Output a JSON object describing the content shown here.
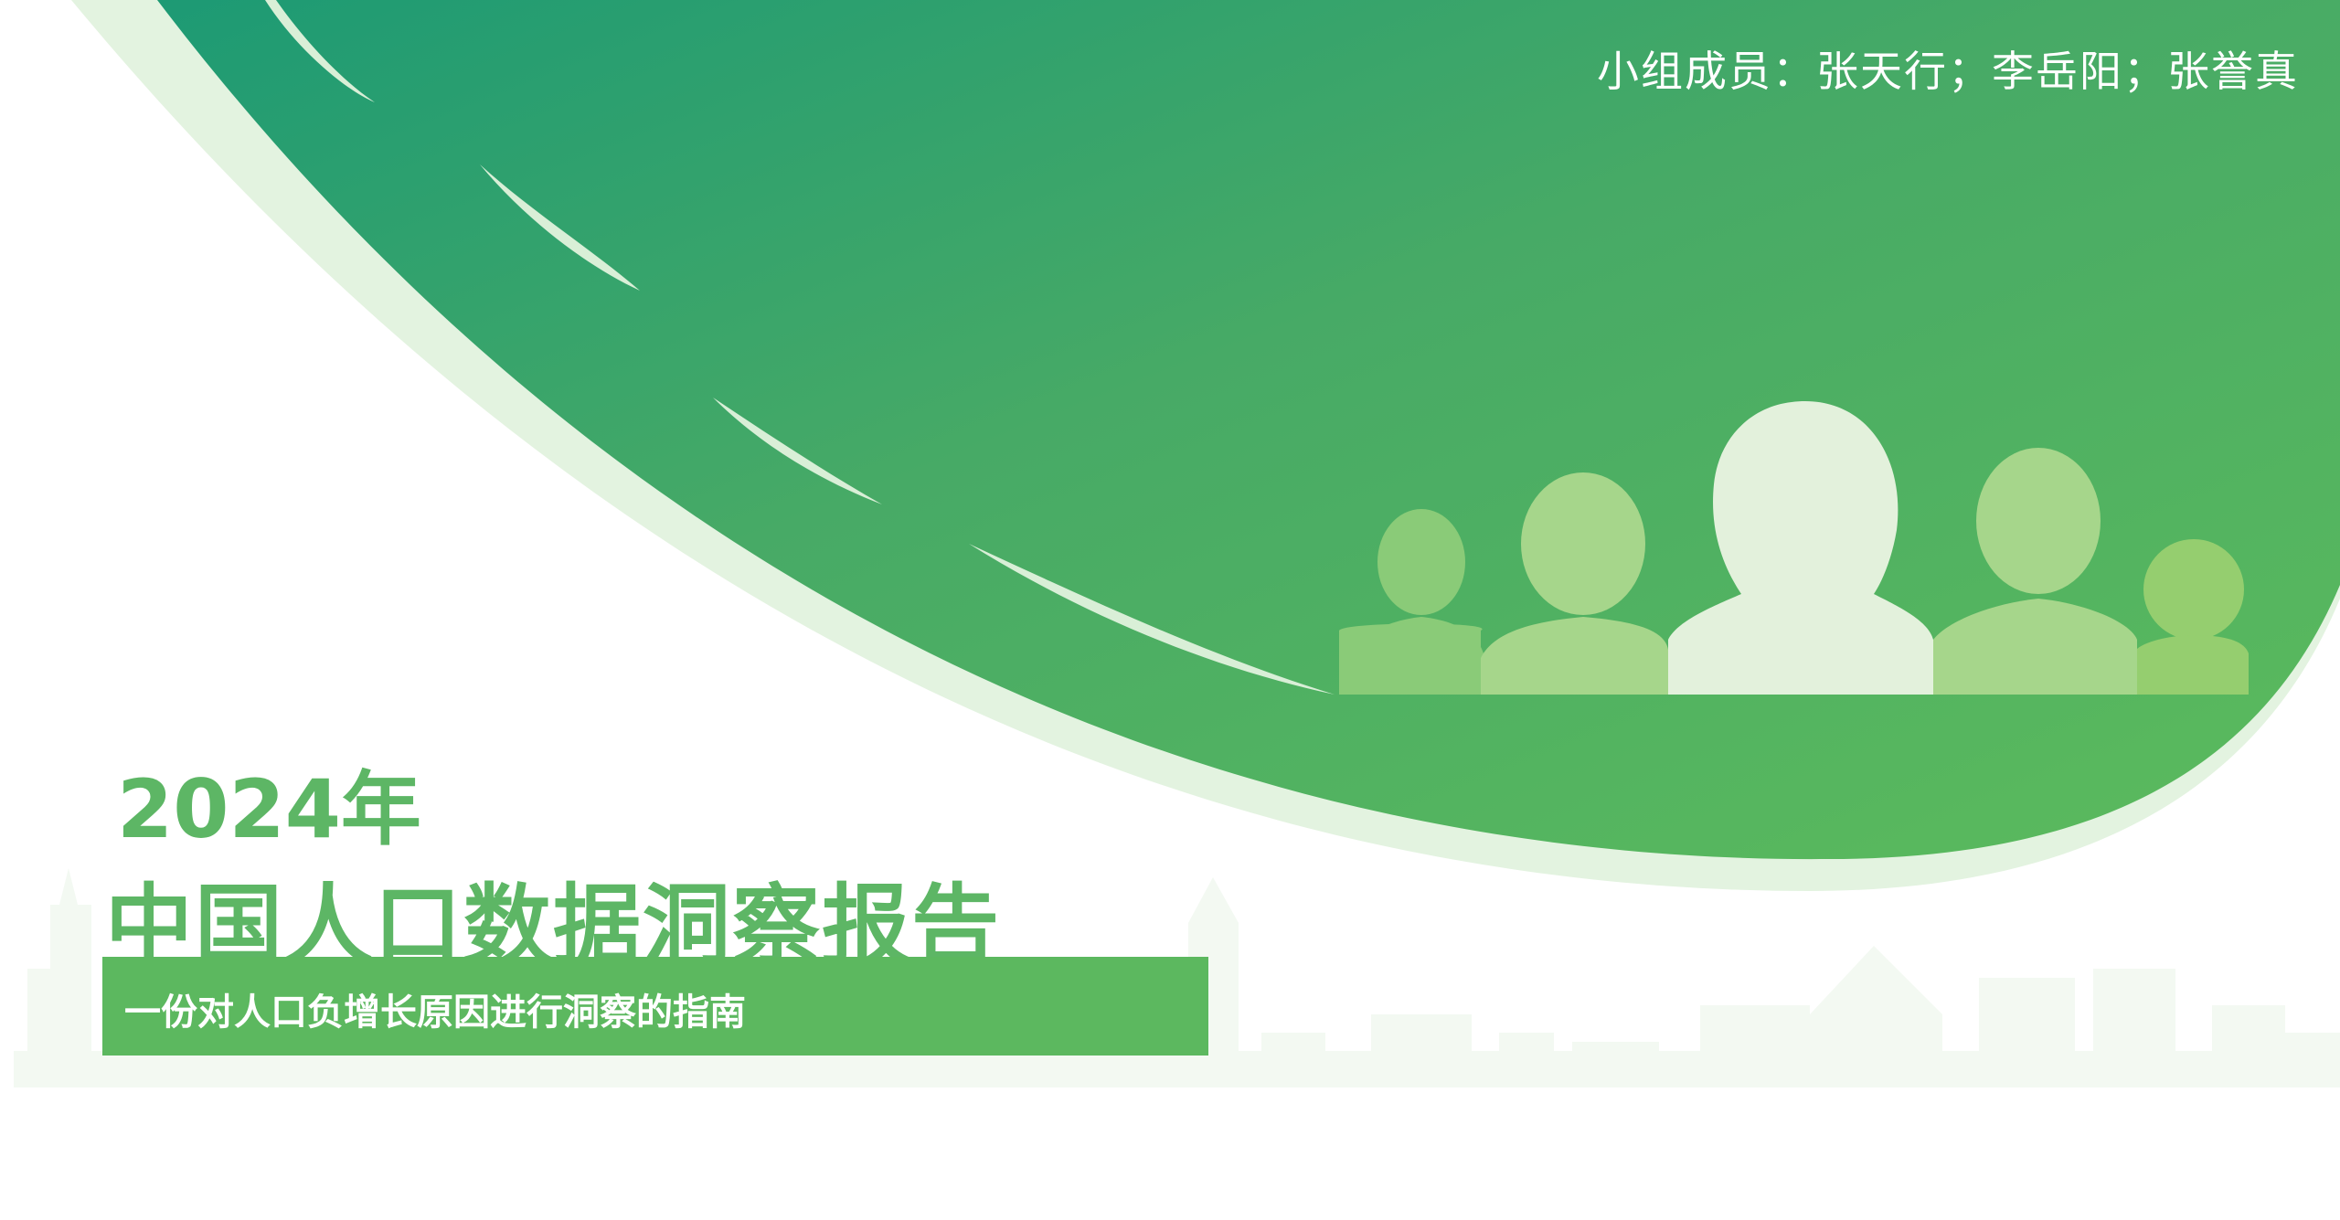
{
  "header": {
    "team_members": "小组成员：张天行；李岳阳；张誉真"
  },
  "cover": {
    "year": "2024年",
    "title": "中国人口数据洞察报告",
    "subtitle": "一份对人口负增长原因进行洞察的指南"
  },
  "colors": {
    "green_primary": "#5cb85f",
    "green_dark": "#1f9a73",
    "green_light": "#e3f3e0",
    "skyline": "#f3f9f2"
  }
}
